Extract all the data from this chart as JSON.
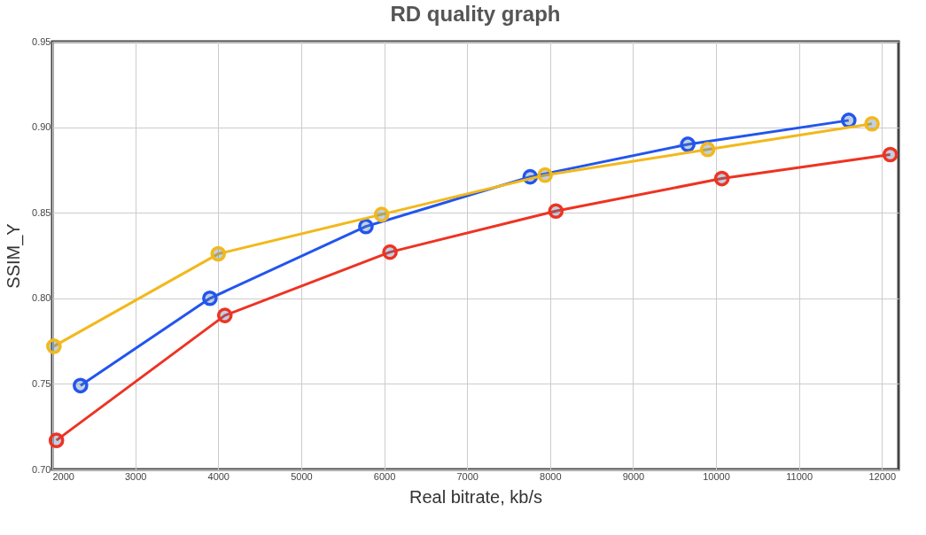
{
  "chart_data": {
    "type": "line",
    "title": "RD quality graph",
    "xlabel": "Real bitrate, kb/s",
    "ylabel": "SSIM_Y",
    "xlim": [
      2000,
      12200
    ],
    "xticks": [
      2000,
      3000,
      4000,
      5000,
      6000,
      7000,
      8000,
      9000,
      10000,
      11000,
      12000
    ],
    "ylim": [
      0.7,
      0.95
    ],
    "yticks": [
      {
        "value": 0.7,
        "label": "0.70"
      },
      {
        "value": 0.75,
        "label": "0.75"
      },
      {
        "value": 0.8,
        "label": "0.80"
      },
      {
        "value": 0.85,
        "label": "0.85"
      },
      {
        "value": 0.9,
        "label": "0.90"
      },
      {
        "value": 0.95,
        "label": "0.95"
      }
    ],
    "grid": true,
    "marker": "circle",
    "line_style": "solid",
    "legend": false,
    "series": [
      {
        "color": "#2255ee",
        "x": [
          2340,
          3900,
          5780,
          7760,
          9660,
          11600
        ],
        "values": [
          0.749,
          0.8,
          0.842,
          0.871,
          0.89,
          0.904
        ]
      },
      {
        "color": "#f2b81c",
        "x": [
          2020,
          4000,
          5970,
          7940,
          9900,
          11880
        ],
        "values": [
          0.772,
          0.826,
          0.849,
          0.872,
          0.887,
          0.902
        ]
      },
      {
        "color": "#ee3322",
        "x": [
          2050,
          4080,
          6070,
          8070,
          10070,
          12100
        ],
        "values": [
          0.717,
          0.79,
          0.827,
          0.851,
          0.87,
          0.884
        ]
      }
    ]
  }
}
